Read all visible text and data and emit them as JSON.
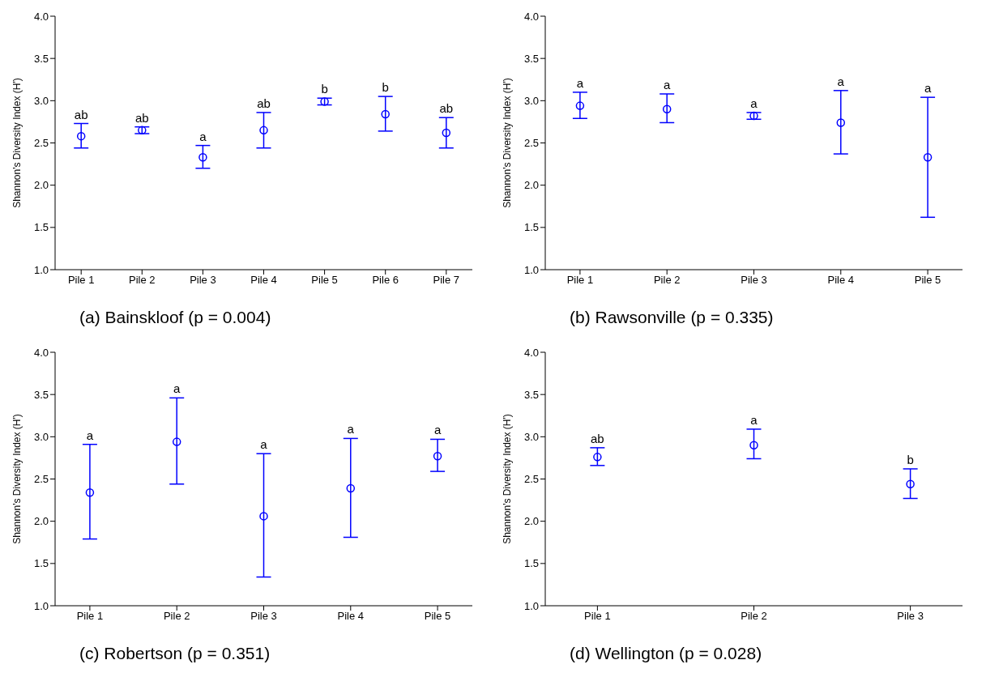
{
  "chart_data": [
    {
      "type": "scatter",
      "title": "(a) Bainskloof (p = 0.004)",
      "ylabel": "Shannon's Diversity Index (H')",
      "categories": [
        "Pile 1",
        "Pile 2",
        "Pile 3",
        "Pile 4",
        "Pile 5",
        "Pile 6",
        "Pile 7"
      ],
      "series": [
        {
          "color": "#0000ff",
          "values": [
            2.58,
            2.65,
            2.33,
            2.65,
            2.99,
            2.84,
            2.62
          ],
          "errors": [
            [
              2.44,
              2.73
            ],
            [
              2.61,
              2.69
            ],
            [
              2.2,
              2.47
            ],
            [
              2.44,
              2.86
            ],
            [
              2.95,
              3.03
            ],
            [
              2.64,
              3.05
            ],
            [
              2.44,
              2.8
            ]
          ]
        }
      ],
      "ylim": [
        1,
        4
      ],
      "yticks": [
        {
          "value": 1,
          "label": "1.0"
        },
        {
          "value": 1.5,
          "label": "1.5"
        },
        {
          "value": 2,
          "label": "2.0"
        },
        {
          "value": 2.5,
          "label": "2.5"
        },
        {
          "value": 3,
          "label": "3.0"
        },
        {
          "value": 3.5,
          "label": "3.5"
        },
        {
          "value": 4,
          "label": "4.0"
        }
      ],
      "marker": "circle",
      "grid": false,
      "legend": false,
      "annotations": [
        {
          "text": "ab",
          "x": "Pile 1",
          "y": 2.73
        },
        {
          "text": "ab",
          "x": "Pile 2",
          "y": 2.69
        },
        {
          "text": "a",
          "x": "Pile 3",
          "y": 2.47
        },
        {
          "text": "ab",
          "x": "Pile 4",
          "y": 2.86
        },
        {
          "text": "b",
          "x": "Pile 5",
          "y": 3.03
        },
        {
          "text": "b",
          "x": "Pile 6",
          "y": 3.05
        },
        {
          "text": "ab",
          "x": "Pile 7",
          "y": 2.8
        }
      ]
    },
    {
      "type": "scatter",
      "title": "(b) Rawsonville (p = 0.335)",
      "ylabel": "Shannon's Diversity Index (H')",
      "categories": [
        "Pile 1",
        "Pile 2",
        "Pile 3",
        "Pile 4",
        "Pile 5"
      ],
      "series": [
        {
          "color": "#0000ff",
          "values": [
            2.94,
            2.9,
            2.82,
            2.74,
            2.33
          ],
          "errors": [
            [
              2.79,
              3.1
            ],
            [
              2.74,
              3.08
            ],
            [
              2.78,
              2.86
            ],
            [
              2.37,
              3.12
            ],
            [
              1.62,
              3.04
            ]
          ]
        }
      ],
      "ylim": [
        1,
        4
      ],
      "yticks": [
        {
          "value": 1,
          "label": "1.0"
        },
        {
          "value": 1.5,
          "label": "1.5"
        },
        {
          "value": 2,
          "label": "2.0"
        },
        {
          "value": 2.5,
          "label": "2.5"
        },
        {
          "value": 3,
          "label": "3.0"
        },
        {
          "value": 3.5,
          "label": "3.5"
        },
        {
          "value": 4,
          "label": "4.0"
        }
      ],
      "marker": "circle",
      "grid": false,
      "legend": false,
      "annotations": [
        {
          "text": "a",
          "x": "Pile 1",
          "y": 3.1
        },
        {
          "text": "a",
          "x": "Pile 2",
          "y": 3.08
        },
        {
          "text": "a",
          "x": "Pile 3",
          "y": 2.86
        },
        {
          "text": "a",
          "x": "Pile 4",
          "y": 3.12
        },
        {
          "text": "a",
          "x": "Pile 5",
          "y": 3.04
        }
      ]
    },
    {
      "type": "scatter",
      "title": "(c) Robertson (p = 0.351)",
      "ylabel": "Shannon's Diversity Index (H')",
      "categories": [
        "Pile 1",
        "Pile 2",
        "Pile 3",
        "Pile 4",
        "Pile 5"
      ],
      "series": [
        {
          "color": "#0000ff",
          "values": [
            2.34,
            2.94,
            2.06,
            2.39,
            2.77
          ],
          "errors": [
            [
              1.79,
              2.91
            ],
            [
              2.44,
              3.46
            ],
            [
              1.34,
              2.8
            ],
            [
              1.81,
              2.98
            ],
            [
              2.59,
              2.97
            ]
          ]
        }
      ],
      "ylim": [
        1,
        4
      ],
      "yticks": [
        {
          "value": 1,
          "label": "1.0"
        },
        {
          "value": 1.5,
          "label": "1.5"
        },
        {
          "value": 2,
          "label": "2.0"
        },
        {
          "value": 2.5,
          "label": "2.5"
        },
        {
          "value": 3,
          "label": "3.0"
        },
        {
          "value": 3.5,
          "label": "3.5"
        },
        {
          "value": 4,
          "label": "4.0"
        }
      ],
      "marker": "circle",
      "grid": false,
      "legend": false,
      "annotations": [
        {
          "text": "a",
          "x": "Pile 1",
          "y": 2.91
        },
        {
          "text": "a",
          "x": "Pile 2",
          "y": 3.46
        },
        {
          "text": "a",
          "x": "Pile 3",
          "y": 2.8
        },
        {
          "text": "a",
          "x": "Pile 4",
          "y": 2.98
        },
        {
          "text": "a",
          "x": "Pile 5",
          "y": 2.97
        }
      ]
    },
    {
      "type": "scatter",
      "title": "(d) Wellington (p = 0.028)",
      "ylabel": "Shannon's Diversity Index (H')",
      "categories": [
        "Pile 1",
        "Pile 2",
        "Pile 3"
      ],
      "series": [
        {
          "color": "#0000ff",
          "values": [
            2.76,
            2.9,
            2.44
          ],
          "errors": [
            [
              2.66,
              2.87
            ],
            [
              2.74,
              3.09
            ],
            [
              2.27,
              2.62
            ]
          ]
        }
      ],
      "ylim": [
        1,
        4
      ],
      "yticks": [
        {
          "value": 1,
          "label": "1.0"
        },
        {
          "value": 1.5,
          "label": "1.5"
        },
        {
          "value": 2,
          "label": "2.0"
        },
        {
          "value": 2.5,
          "label": "2.5"
        },
        {
          "value": 3,
          "label": "3.0"
        },
        {
          "value": 3.5,
          "label": "3.5"
        },
        {
          "value": 4,
          "label": "4.0"
        }
      ],
      "marker": "circle",
      "grid": false,
      "legend": false,
      "annotations": [
        {
          "text": "ab",
          "x": "Pile 1",
          "y": 2.87
        },
        {
          "text": "a",
          "x": "Pile 2",
          "y": 3.09
        },
        {
          "text": "b",
          "x": "Pile 3",
          "y": 2.62
        }
      ]
    }
  ]
}
